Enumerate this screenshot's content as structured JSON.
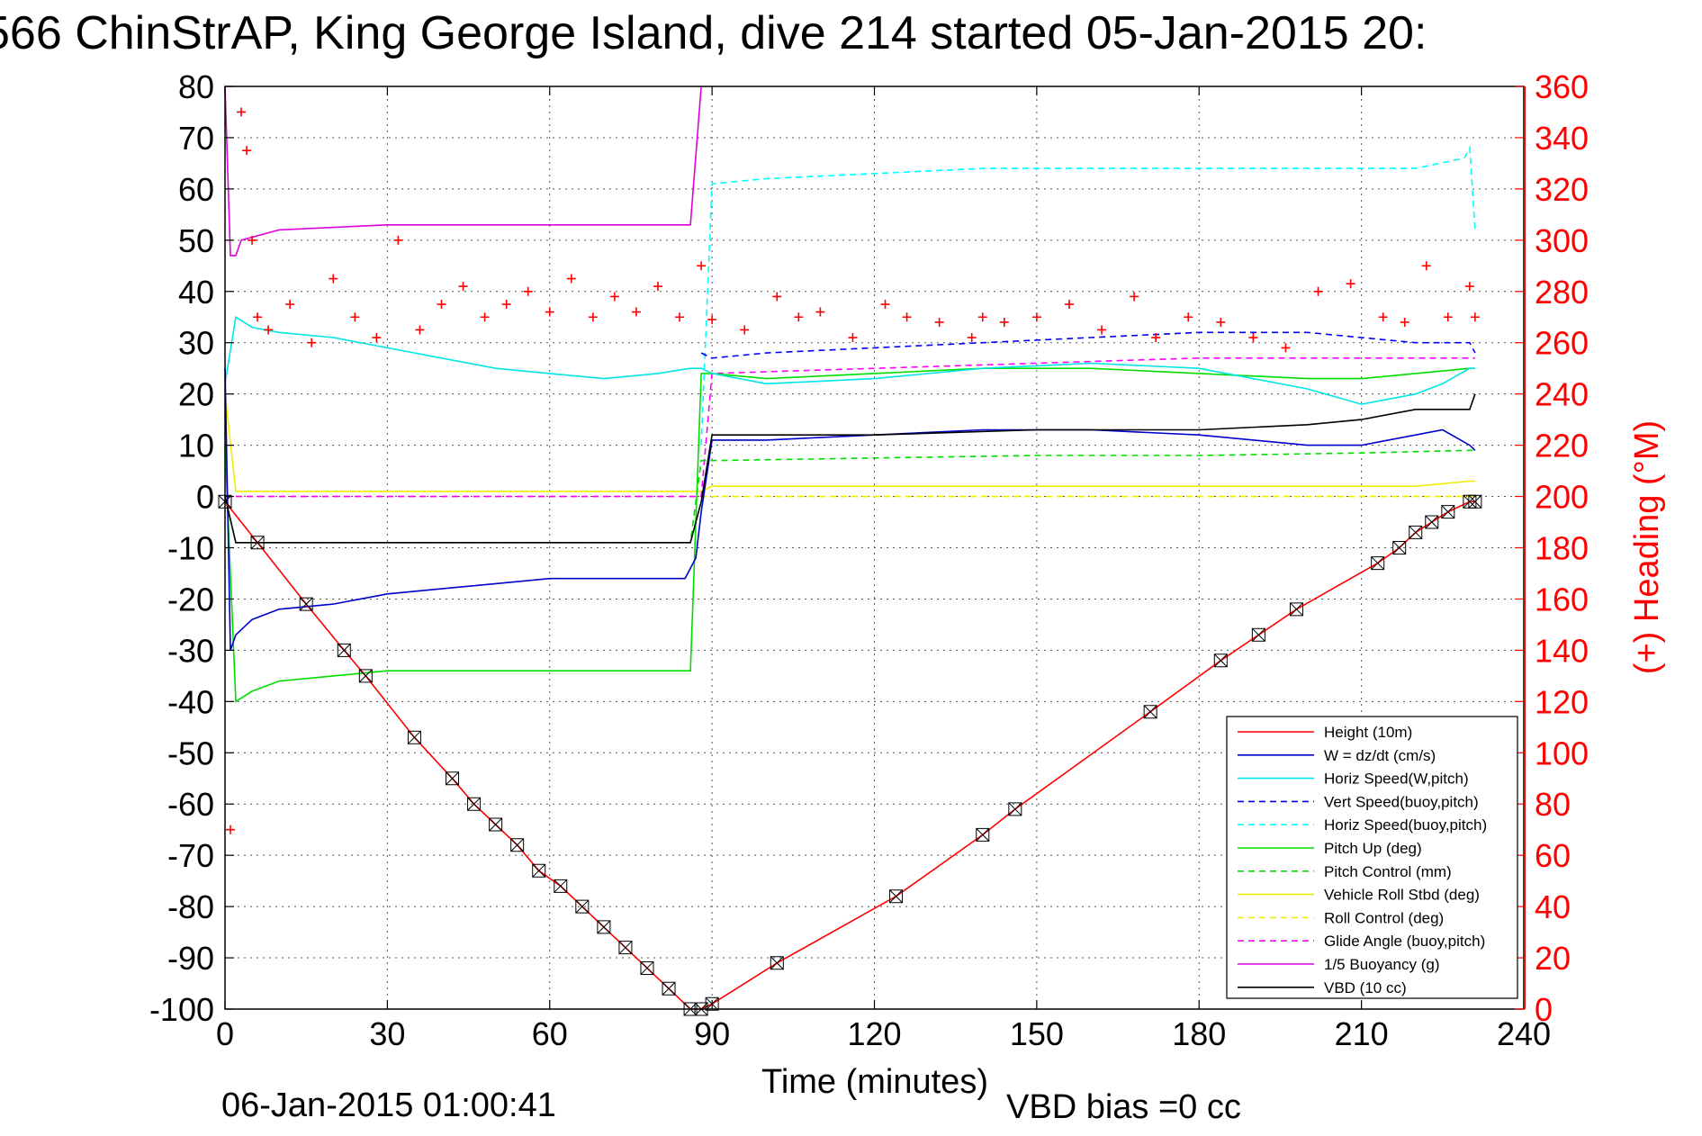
{
  "title": "566 ChinStrAP, King George Island, dive 214 started 05-Jan-2015 20:",
  "footer": {
    "timestamp": "06-Jan-2015 01:00:41",
    "vbd_bias": "VBD bias =0 cc"
  },
  "colors": {
    "height": "#ff0000",
    "w": "#0000cc",
    "horiz_speed": "#00e5e5",
    "vert_speed_buoy": "#0000ff",
    "horiz_speed_buoy": "#00ffff",
    "pitch_up": "#00dd00",
    "pitch_control": "#00dd00",
    "roll": "#eeee00",
    "roll_control": "#eeee00",
    "glide_angle": "#ff00ff",
    "buoyancy": "#dd00dd",
    "vbd": "#000000",
    "heading": "#ff0000"
  },
  "chart_data": {
    "type": "line",
    "title": "566 ChinStrAP, King George Island, dive 214 started 05-Jan-2015 20:",
    "xlabel": "Time (minutes)",
    "ylabel": "",
    "y2label": "(+) Heading (°M)",
    "xlim": [
      0,
      240
    ],
    "ylim": [
      -100,
      80
    ],
    "y2lim": [
      0,
      360
    ],
    "xticks": [
      "0",
      "30",
      "60",
      "90",
      "120",
      "150",
      "180",
      "210",
      "240"
    ],
    "yticks": [
      "80",
      "70",
      "60",
      "50",
      "40",
      "30",
      "20",
      "10",
      "0",
      "-10",
      "-20",
      "-30",
      "-40",
      "-50",
      "-60",
      "-70",
      "-80",
      "-90",
      "-100"
    ],
    "y2ticks": [
      "360",
      "340",
      "320",
      "300",
      "280",
      "260",
      "240",
      "220",
      "200",
      "180",
      "160",
      "140",
      "120",
      "100",
      "80",
      "60",
      "40",
      "20",
      "0"
    ],
    "grid": true,
    "legend_position": "bottom-right",
    "series": [
      {
        "name": "Height (10m)",
        "key": "height",
        "style": "solid",
        "marker": "x",
        "x": [
          0,
          6,
          15,
          22,
          26,
          35,
          42,
          46,
          50,
          54,
          58,
          62,
          66,
          70,
          74,
          78,
          82,
          86,
          88,
          90,
          102,
          124,
          140,
          146,
          171,
          184,
          191,
          198,
          213,
          217,
          220,
          223,
          226,
          230,
          231
        ],
        "y": [
          -1,
          -9,
          -21,
          -30,
          -35,
          -47,
          -55,
          -60,
          -64,
          -68,
          -73,
          -76,
          -80,
          -84,
          -88,
          -92,
          -96,
          -100,
          -100,
          -99,
          -91,
          -78,
          -66,
          -61,
          -42,
          -32,
          -27,
          -22,
          -13,
          -10,
          -7,
          -5,
          -3,
          -1,
          -1
        ]
      },
      {
        "name": "W = dz/dt (cm/s)",
        "key": "w",
        "style": "solid",
        "x": [
          0,
          1,
          2,
          5,
          10,
          20,
          30,
          40,
          50,
          60,
          70,
          80,
          85,
          87,
          88,
          90,
          100,
          120,
          140,
          160,
          180,
          200,
          210,
          220,
          225,
          230,
          231
        ],
        "y": [
          25,
          -30,
          -27,
          -24,
          -22,
          -21,
          -19,
          -18,
          -17,
          -16,
          -16,
          -16,
          -16,
          -12,
          -3,
          11,
          11,
          12,
          13,
          13,
          12,
          10,
          10,
          12,
          13,
          10,
          9
        ]
      },
      {
        "name": "Horiz Speed(W,pitch)",
        "key": "horiz_speed",
        "style": "solid",
        "x": [
          0,
          2,
          5,
          10,
          20,
          30,
          40,
          50,
          60,
          70,
          80,
          86,
          88,
          90,
          100,
          120,
          140,
          160,
          180,
          200,
          210,
          220,
          225,
          230,
          231
        ],
        "y": [
          22,
          35,
          33,
          32,
          31,
          29,
          27,
          25,
          24,
          23,
          24,
          25,
          25,
          24,
          22,
          23,
          25,
          26,
          25,
          21,
          18,
          20,
          22,
          25,
          25
        ]
      },
      {
        "name": "Vert Speed(buoy,pitch)",
        "key": "vert_speed_buoy",
        "style": "dashed",
        "x": [
          88,
          90,
          100,
          120,
          140,
          160,
          180,
          200,
          220,
          230,
          231
        ],
        "y": [
          28,
          27,
          28,
          29,
          30,
          31,
          32,
          32,
          30,
          30,
          28
        ]
      },
      {
        "name": "Horiz Speed(buoy,pitch)",
        "key": "horiz_speed_buoy",
        "style": "dashed",
        "x": [
          88,
          90,
          100,
          120,
          140,
          160,
          180,
          200,
          220,
          229,
          230,
          231
        ],
        "y": [
          10,
          61,
          62,
          63,
          64,
          64,
          64,
          64,
          64,
          66,
          68,
          52
        ]
      },
      {
        "name": "Pitch Up (deg)",
        "key": "pitch_up",
        "style": "solid",
        "x": [
          0,
          2,
          5,
          10,
          20,
          30,
          40,
          50,
          60,
          70,
          80,
          85,
          86,
          88,
          90,
          100,
          120,
          140,
          160,
          180,
          200,
          210,
          220,
          230,
          231
        ],
        "y": [
          10,
          -40,
          -38,
          -36,
          -35,
          -34,
          -34,
          -34,
          -34,
          -34,
          -34,
          -34,
          -34,
          24,
          24,
          23,
          24,
          25,
          25,
          24,
          23,
          23,
          24,
          25,
          25
        ]
      },
      {
        "name": "Pitch Control (mm)",
        "key": "pitch_control",
        "style": "dashed",
        "x": [
          0,
          2,
          86,
          88,
          90,
          120,
          150,
          180,
          210,
          230,
          231
        ],
        "y": [
          0,
          -9,
          -9,
          7,
          7,
          7.5,
          8,
          8,
          8.5,
          9,
          9
        ]
      },
      {
        "name": "Vehicle Roll Stbd (deg)",
        "key": "roll",
        "style": "solid",
        "x": [
          0,
          2,
          10,
          20,
          30,
          40,
          50,
          60,
          70,
          80,
          88,
          90,
          120,
          150,
          180,
          210,
          220,
          230,
          231
        ],
        "y": [
          20,
          1,
          1,
          1,
          1,
          1,
          1,
          1,
          1,
          1,
          1,
          2,
          2,
          2,
          2,
          2,
          2,
          3,
          3
        ]
      },
      {
        "name": "Roll Control (deg)",
        "key": "roll_control",
        "style": "dashed",
        "x": [
          0,
          88,
          90,
          120,
          150,
          180,
          210,
          230,
          231
        ],
        "y": [
          0,
          0,
          0,
          0,
          0,
          0,
          0,
          0,
          0
        ]
      },
      {
        "name": "Glide Angle (buoy,pitch)",
        "key": "glide_angle",
        "style": "dashed",
        "x": [
          0,
          88,
          90,
          120,
          150,
          180,
          210,
          230,
          231
        ],
        "y": [
          0,
          0,
          24,
          25,
          26,
          27,
          27,
          27,
          27
        ]
      },
      {
        "name": "1/5 Buoyancy (g)",
        "key": "buoyancy",
        "style": "solid",
        "x": [
          0,
          1,
          2,
          3,
          10,
          30,
          60,
          85,
          86,
          88
        ],
        "y": [
          80,
          47,
          47,
          50,
          52,
          53,
          53,
          53,
          53,
          80
        ]
      },
      {
        "name": "VBD (10 cc)",
        "key": "vbd",
        "style": "solid",
        "x": [
          0,
          2,
          86,
          88,
          90,
          120,
          150,
          180,
          200,
          210,
          220,
          230,
          231
        ],
        "y": [
          0,
          -9,
          -9,
          -1,
          12,
          12,
          13,
          13,
          14,
          15,
          17,
          17,
          20
        ]
      },
      {
        "name": "Heading",
        "key": "heading",
        "axis": "right",
        "style": "markers",
        "marker": "+",
        "x": [
          1,
          3,
          4,
          5,
          6,
          8,
          12,
          16,
          20,
          24,
          28,
          32,
          36,
          40,
          44,
          48,
          52,
          56,
          60,
          64,
          68,
          72,
          76,
          80,
          84,
          88,
          90,
          96,
          102,
          106,
          110,
          116,
          122,
          126,
          132,
          138,
          140,
          144,
          150,
          156,
          162,
          168,
          172,
          178,
          184,
          190,
          196,
          202,
          208,
          214,
          218,
          222,
          226,
          230,
          231
        ],
        "y": [
          70,
          350,
          335,
          300,
          270,
          265,
          275,
          260,
          285,
          270,
          262,
          300,
          265,
          275,
          282,
          270,
          275,
          280,
          272,
          285,
          270,
          278,
          272,
          282,
          270,
          290,
          269,
          265,
          278,
          270,
          272,
          262,
          275,
          270,
          268,
          262,
          270,
          268,
          270,
          275,
          265,
          278,
          262,
          270,
          268,
          262,
          258,
          280,
          283,
          270,
          268,
          290,
          270,
          282,
          270
        ]
      }
    ]
  },
  "legend": {
    "entries": [
      {
        "label": "Height (10m)",
        "key": "height",
        "style": "solid"
      },
      {
        "label": "W = dz/dt (cm/s)",
        "key": "w",
        "style": "solid"
      },
      {
        "label": "Horiz Speed(W,pitch)",
        "key": "horiz_speed",
        "style": "solid"
      },
      {
        "label": "Vert Speed(buoy,pitch)",
        "key": "vert_speed_buoy",
        "style": "dashed"
      },
      {
        "label": "Horiz Speed(buoy,pitch)",
        "key": "horiz_speed_buoy",
        "style": "dashed"
      },
      {
        "label": "Pitch Up (deg)",
        "key": "pitch_up",
        "style": "solid"
      },
      {
        "label": "Pitch Control (mm)",
        "key": "pitch_control",
        "style": "dashed"
      },
      {
        "label": "Vehicle Roll Stbd (deg)",
        "key": "roll",
        "style": "solid"
      },
      {
        "label": "Roll Control (deg)",
        "key": "roll_control",
        "style": "dashed"
      },
      {
        "label": "Glide Angle (buoy,pitch)",
        "key": "glide_angle",
        "style": "dashed"
      },
      {
        "label": "1/5 Buoyancy (g)",
        "key": "buoyancy",
        "style": "solid"
      },
      {
        "label": "VBD (10 cc)",
        "key": "vbd",
        "style": "solid"
      }
    ]
  }
}
